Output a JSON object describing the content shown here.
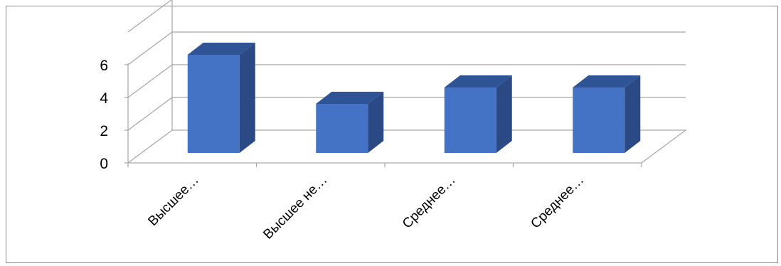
{
  "chart_data": {
    "type": "bar",
    "bar_style": "3d-column",
    "categories": [
      "Высшее…",
      "Высшее не…",
      "Среднее…",
      "Среднее…"
    ],
    "values": [
      6,
      3,
      4,
      4
    ],
    "ylim": [
      0,
      8
    ],
    "yticks": [
      0,
      2,
      4,
      6
    ],
    "grid": true,
    "legend": "none",
    "colors": {
      "bar_front": "#4472C4",
      "bar_top": "#2F5496",
      "bar_side": "#2B4A85",
      "grid": "#a6a6a6",
      "frame": "#8c8c8c"
    }
  }
}
